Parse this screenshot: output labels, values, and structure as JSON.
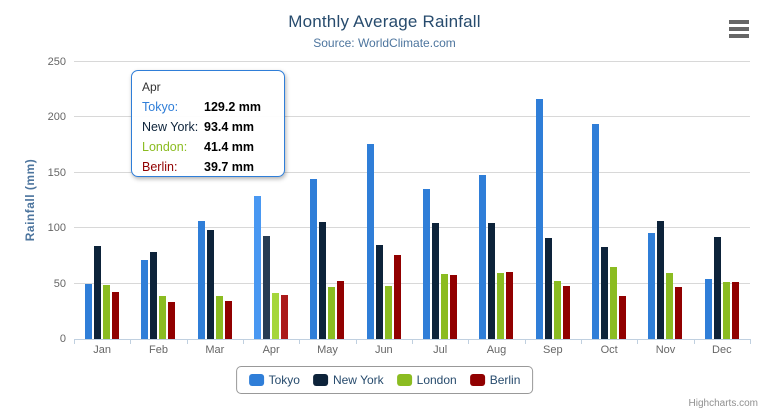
{
  "chart_data": {
    "type": "bar",
    "title": "Monthly Average Rainfall",
    "subtitle": "Source: WorldClimate.com",
    "xlabel": "",
    "ylabel": "Rainfall (mm)",
    "ylim": [
      0,
      250
    ],
    "yticks": [
      0,
      50,
      100,
      150,
      200,
      250
    ],
    "grid": true,
    "legend_position": "bottom",
    "categories": [
      "Jan",
      "Feb",
      "Mar",
      "Apr",
      "May",
      "Jun",
      "Jul",
      "Aug",
      "Sep",
      "Oct",
      "Nov",
      "Dec"
    ],
    "series": [
      {
        "name": "Tokyo",
        "color": "#2f7ed8",
        "values": [
          49.9,
          71.5,
          106.4,
          129.2,
          144.0,
          176.0,
          135.6,
          148.5,
          216.4,
          194.1,
          95.6,
          54.4
        ]
      },
      {
        "name": "New York",
        "color": "#0d233a",
        "values": [
          83.6,
          78.8,
          98.5,
          93.4,
          106.0,
          84.5,
          105.0,
          104.3,
          91.2,
          83.5,
          106.6,
          92.3
        ]
      },
      {
        "name": "London",
        "color": "#8bbc21",
        "values": [
          48.9,
          38.8,
          39.3,
          41.4,
          47.0,
          48.3,
          59.0,
          59.6,
          52.4,
          65.2,
          59.3,
          51.2
        ]
      },
      {
        "name": "Berlin",
        "color": "#910000",
        "values": [
          42.4,
          33.2,
          34.5,
          39.7,
          52.6,
          75.5,
          57.4,
          60.4,
          47.6,
          39.1,
          46.8,
          51.1
        ]
      }
    ]
  },
  "tooltip": {
    "visible": true,
    "category": "Apr",
    "border_color": "#2f7ed8",
    "rows": [
      {
        "series": "Tokyo",
        "value": "129.2 mm"
      },
      {
        "series": "New York",
        "value": "93.4 mm"
      },
      {
        "series": "London",
        "value": "41.4 mm"
      },
      {
        "series": "Berlin",
        "value": "39.7 mm"
      }
    ]
  },
  "legend": {
    "items": [
      "Tokyo",
      "New York",
      "London",
      "Berlin"
    ]
  },
  "credits": {
    "label": "Highcharts.com"
  },
  "menu": {
    "icon": "hamburger-icon"
  },
  "colors": {
    "title": "#274b6d",
    "subtitle": "#4d759e",
    "axis_label": "#666666",
    "axis_line": "#c0d0e0",
    "gridline": "#d8d8d8",
    "legend_text": "#274b6d",
    "credits_text": "#909090",
    "menu_icon": "#666666"
  }
}
